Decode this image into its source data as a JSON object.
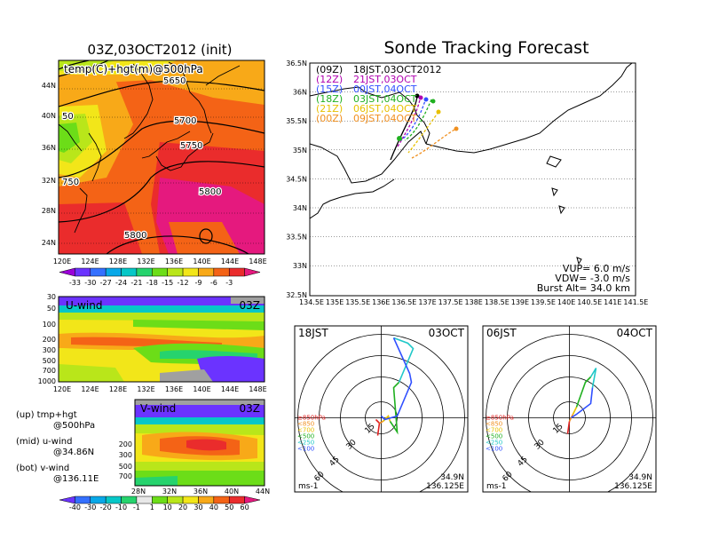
{
  "main_title": "Sonde Tracking Forecast",
  "left_title": "03Z,03OCT2012 (init)",
  "top_panel": {
    "label": "temp(C)+hgt(m)@500hPa",
    "contours": [
      "5650",
      "5700",
      "5750",
      "5800",
      "5800",
      "50",
      "750"
    ],
    "lat_labels": [
      "44N",
      "40N",
      "36N",
      "32N",
      "28N",
      "24N"
    ],
    "lon_labels": [
      "120E",
      "124E",
      "128E",
      "132E",
      "136E",
      "140E",
      "144E",
      "148E"
    ],
    "colorbar_labels": [
      "-33",
      "-30",
      "-27",
      "-24",
      "-21",
      "-18",
      "-15",
      "-12",
      "-9",
      "-6",
      "-3"
    ],
    "colorbar_colors": [
      "#9b00d8",
      "#6b33ff",
      "#3470ff",
      "#08a8e8",
      "#06c7c7",
      "#26d36d",
      "#6cdd18",
      "#b9e61a",
      "#f2e619",
      "#f8a918",
      "#f46316",
      "#ea2c2c",
      "#e5197e"
    ]
  },
  "uwind_panel": {
    "label": "U-wind",
    "time": "03Z",
    "pressure_labels": [
      "30",
      "50",
      "100",
      "200",
      "300",
      "500",
      "700",
      "1000"
    ],
    "lon_labels": [
      "120E",
      "124E",
      "128E",
      "132E",
      "136E",
      "140E",
      "144E",
      "148E"
    ]
  },
  "vwind_panel": {
    "label": "V-wind",
    "time": "03Z",
    "pressure_labels": [
      "200",
      "300",
      "500",
      "700"
    ],
    "lat_labels": [
      "28N",
      "32N",
      "36N",
      "40N",
      "44N"
    ]
  },
  "bottom_colorbar": {
    "labels": [
      "-40",
      "-30",
      "-20",
      "-10",
      "-1",
      "1",
      "10",
      "20",
      "30",
      "40",
      "50",
      "60"
    ],
    "colors": [
      "#6b33ff",
      "#3470ff",
      "#08a8e8",
      "#06c7c7",
      "#26d36d",
      "#e8e8e8",
      "#6cdd18",
      "#b9e61a",
      "#f2e619",
      "#f8a918",
      "#f46316",
      "#ea2c2c",
      "#e5197e"
    ]
  },
  "legend_notes": [
    {
      "a": "(up) tmp+hgt",
      "b": "@500hPa"
    },
    {
      "a": "(mid) u-wind",
      "b": "@34.86N"
    },
    {
      "a": "(bot) v-wind",
      "b": "@136.11E"
    }
  ],
  "track_map": {
    "lat_labels": [
      "36.5N",
      "36N",
      "35.5N",
      "35N",
      "34.5N",
      "34N",
      "33.5N",
      "33N",
      "32.5N"
    ],
    "lon_labels": [
      "134.5E",
      "135E",
      "135.5E",
      "136E",
      "136.5E",
      "137E",
      "137.5E",
      "138E",
      "138.5E",
      "139E",
      "139.5E",
      "140E",
      "140.5E",
      "141E",
      "141.5E"
    ],
    "forecasts": [
      {
        "run": "(09Z)",
        "time": "18JST,03OCT2012",
        "color": "#000000"
      },
      {
        "run": "(12Z)",
        "time": "21JST,03OCT",
        "color": "#b000b0"
      },
      {
        "run": "(15Z)",
        "time": "00JST,04OCT",
        "color": "#3050ff"
      },
      {
        "run": "(18Z)",
        "time": "03JST,04OCT",
        "color": "#20b020"
      },
      {
        "run": "(21Z)",
        "time": "06JST,04OCT",
        "color": "#e8c000"
      },
      {
        "run": "(00Z)",
        "time": "09JST,04OCT",
        "color": "#f09020"
      }
    ],
    "params": {
      "vup": "VUP= 6.0 m/s",
      "vdw": "VDW= -3.0 m/s",
      "burst": "Burst Alt= 34.0 km"
    }
  },
  "hodographs": [
    {
      "time_left": "18JST",
      "time_right": "03OCT",
      "lat": "34.9N",
      "lon": "136.125E",
      "unit": "ms-1",
      "ring_labels": [
        "15",
        "30",
        "45",
        "60"
      ],
      "levels": [
        {
          "label": "≥850hPa",
          "color": "#e02020"
        },
        {
          "label": "<850",
          "color": "#f09020"
        },
        {
          "label": "<700",
          "color": "#e8c000"
        },
        {
          "label": "<500",
          "color": "#20b020"
        },
        {
          "label": "<250",
          "color": "#20c8c8"
        },
        {
          "label": "<100",
          "color": "#3050ff"
        }
      ]
    },
    {
      "time_left": "06JST",
      "time_right": "04OCT",
      "lat": "34.9N",
      "lon": "136.125E",
      "unit": "ms-1",
      "ring_labels": [
        "15",
        "30",
        "45",
        "60"
      ],
      "levels": [
        {
          "label": "≥850hPa",
          "color": "#e02020"
        },
        {
          "label": "<850",
          "color": "#f09020"
        },
        {
          "label": "<700",
          "color": "#e8c000"
        },
        {
          "label": "<500",
          "color": "#20b020"
        },
        {
          "label": "<250",
          "color": "#20c8c8"
        },
        {
          "label": "<100",
          "color": "#3050ff"
        }
      ]
    }
  ]
}
